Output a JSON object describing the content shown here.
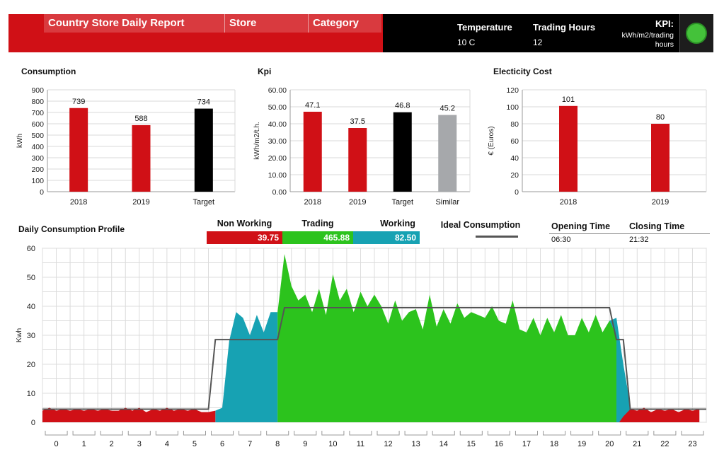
{
  "header": {
    "title": "Country Store Daily Report",
    "store_label": "Store",
    "category_label": "Category",
    "temperature_label": "Temperature",
    "temperature_value": "10 C",
    "trading_hours_label": "Trading Hours",
    "trading_hours_value": "12",
    "kpi_label": "KPI:",
    "kpi_unit_line1": "kWh/m2/trading",
    "kpi_unit_line2": "hours",
    "kpi_status_color": "#44c23a"
  },
  "profile_legend": {
    "non_working_label": "Non Working",
    "non_working_value": "39.75",
    "trading_label": "Trading",
    "trading_value": "465.88",
    "working_label": "Working",
    "working_value": "82.50",
    "ideal_label": "Ideal Consumption"
  },
  "times": {
    "opening_label": "Opening Time",
    "opening_value": "06:30",
    "closing_label": "Closing Time",
    "closing_value": "21:32"
  },
  "colors": {
    "red": "#d01016",
    "black": "#000000",
    "grey": "#a6a8ab",
    "green": "#2cc31d",
    "teal": "#17a2b3",
    "ideal_line": "#555555"
  },
  "chart_data": [
    {
      "id": "consumption",
      "type": "bar",
      "title": "Consumption",
      "ylabel": "kWh",
      "categories": [
        "2018",
        "2019",
        "Target"
      ],
      "values": [
        739,
        588,
        734
      ],
      "labels": [
        "739",
        "588",
        "734"
      ],
      "bar_colors": [
        "#d01016",
        "#d01016",
        "#000000"
      ],
      "ylim": [
        0,
        900
      ],
      "yticks": [
        "0",
        "100",
        "200",
        "300",
        "400",
        "500",
        "600",
        "700",
        "800",
        "900"
      ],
      "grid": true
    },
    {
      "id": "kpi",
      "type": "bar",
      "title": "Kpi",
      "ylabel": "kWh/m2/t.h.",
      "categories": [
        "2018",
        "2019",
        "Target",
        "Similar"
      ],
      "values": [
        47.1,
        37.5,
        46.8,
        45.2
      ],
      "labels": [
        "47.1",
        "37.5",
        "46.8",
        "45.2"
      ],
      "bar_colors": [
        "#d01016",
        "#d01016",
        "#000000",
        "#a6a8ab"
      ],
      "ylim": [
        0,
        60
      ],
      "yticks": [
        "0.00",
        "10.00",
        "20.00",
        "30.00",
        "40.00",
        "50.00",
        "60.00"
      ],
      "grid": true
    },
    {
      "id": "electricity",
      "type": "bar",
      "title": "Electicity Cost",
      "ylabel": "€ (Euros)",
      "categories": [
        "2018",
        "2019"
      ],
      "values": [
        101,
        80
      ],
      "labels": [
        "101",
        "80"
      ],
      "bar_colors": [
        "#d01016",
        "#d01016"
      ],
      "ylim": [
        0,
        120
      ],
      "yticks": [
        "0",
        "20",
        "40",
        "60",
        "80",
        "100",
        "120"
      ],
      "grid": true
    },
    {
      "id": "daily_profile",
      "type": "area",
      "title": "Daily Consumption Profile",
      "ylabel": "Kwh",
      "ylim": [
        0,
        60
      ],
      "xlim": [
        0,
        24
      ],
      "yticks": [
        "0",
        "10",
        "20",
        "30",
        "40",
        "50",
        "60"
      ],
      "xtick_labels": [
        "0",
        "1",
        "2",
        "3",
        "4",
        "5",
        "6",
        "7",
        "8",
        "9",
        "10",
        "11",
        "12",
        "13",
        "14",
        "15",
        "16",
        "17",
        "18",
        "19",
        "20",
        "21",
        "22",
        "23"
      ],
      "grid": true,
      "series": [
        {
          "name": "Non Working",
          "color": "#d01016",
          "points": [
            [
              0,
              4
            ],
            [
              0.25,
              5
            ],
            [
              0.5,
              4
            ],
            [
              0.75,
              4.5
            ],
            [
              1,
              4
            ],
            [
              1.25,
              4.5
            ],
            [
              1.5,
              4
            ],
            [
              1.75,
              4.5
            ],
            [
              2,
              4
            ],
            [
              2.25,
              4.5
            ],
            [
              2.5,
              4
            ],
            [
              2.75,
              4
            ],
            [
              3,
              5
            ],
            [
              3.25,
              4
            ],
            [
              3.5,
              5
            ],
            [
              3.75,
              3.5
            ],
            [
              4,
              4.5
            ],
            [
              4.25,
              4
            ],
            [
              4.5,
              5
            ],
            [
              4.75,
              4
            ],
            [
              5,
              4.5
            ],
            [
              5.25,
              4
            ],
            [
              5.5,
              4.5
            ],
            [
              5.75,
              3.5
            ],
            [
              6,
              3.5
            ],
            [
              6.25,
              4
            ],
            [
              20.85,
              0
            ],
            [
              21,
              2
            ],
            [
              21.25,
              4.5
            ],
            [
              21.5,
              4
            ],
            [
              21.75,
              5
            ],
            [
              22,
              3.5
            ],
            [
              22.25,
              4.5
            ],
            [
              22.5,
              4
            ],
            [
              22.75,
              4.5
            ],
            [
              23,
              3.5
            ],
            [
              23.25,
              4.5
            ],
            [
              23.5,
              4
            ],
            [
              23.75,
              4.5
            ]
          ]
        },
        {
          "name": "Working",
          "color": "#17a2b3",
          "points": [
            [
              6.25,
              4
            ],
            [
              6.5,
              5
            ],
            [
              6.75,
              28
            ],
            [
              7,
              38
            ],
            [
              7.25,
              36
            ],
            [
              7.5,
              30
            ],
            [
              7.75,
              37
            ],
            [
              8,
              31
            ],
            [
              8.25,
              38
            ],
            [
              8.5,
              38
            ],
            [
              20.25,
              31
            ],
            [
              20.5,
              35
            ],
            [
              20.75,
              36
            ],
            [
              21,
              20
            ],
            [
              21.25,
              6
            ]
          ]
        },
        {
          "name": "Trading",
          "color": "#2cc31d",
          "points": [
            [
              8.5,
              38
            ],
            [
              8.75,
              58
            ],
            [
              9,
              47
            ],
            [
              9.25,
              42
            ],
            [
              9.5,
              44
            ],
            [
              9.75,
              38
            ],
            [
              10,
              46
            ],
            [
              10.25,
              37
            ],
            [
              10.5,
              51
            ],
            [
              10.75,
              42
            ],
            [
              11,
              46
            ],
            [
              11.25,
              38
            ],
            [
              11.5,
              45
            ],
            [
              11.75,
              40
            ],
            [
              12,
              44
            ],
            [
              12.25,
              40
            ],
            [
              12.5,
              34
            ],
            [
              12.75,
              42
            ],
            [
              13,
              35
            ],
            [
              13.25,
              38
            ],
            [
              13.5,
              39
            ],
            [
              13.75,
              32
            ],
            [
              14,
              44
            ],
            [
              14.25,
              33
            ],
            [
              14.5,
              39
            ],
            [
              14.75,
              34
            ],
            [
              15,
              41
            ],
            [
              15.25,
              36
            ],
            [
              15.5,
              38
            ],
            [
              15.75,
              37
            ],
            [
              16,
              36
            ],
            [
              16.25,
              40
            ],
            [
              16.5,
              35
            ],
            [
              16.75,
              34
            ],
            [
              17,
              42
            ],
            [
              17.25,
              32
            ],
            [
              17.5,
              31
            ],
            [
              17.75,
              36
            ],
            [
              18,
              30
            ],
            [
              18.25,
              36
            ],
            [
              18.5,
              31
            ],
            [
              18.75,
              37
            ],
            [
              19,
              30
            ],
            [
              19.25,
              30
            ],
            [
              19.5,
              36
            ],
            [
              19.75,
              31
            ],
            [
              20,
              37
            ],
            [
              20.25,
              31
            ],
            [
              20.5,
              35
            ],
            [
              20.75,
              30
            ]
          ]
        },
        {
          "name": "Ideal Consumption",
          "color": "#555555",
          "points": [
            [
              0,
              4.5
            ],
            [
              6,
              4.5
            ],
            [
              6.25,
              28.5
            ],
            [
              8.5,
              28.5
            ],
            [
              8.75,
              39.5
            ],
            [
              20.5,
              39.5
            ],
            [
              20.75,
              28.5
            ],
            [
              21,
              28.5
            ],
            [
              21.25,
              4.5
            ],
            [
              24,
              4.5
            ]
          ]
        }
      ]
    }
  ]
}
